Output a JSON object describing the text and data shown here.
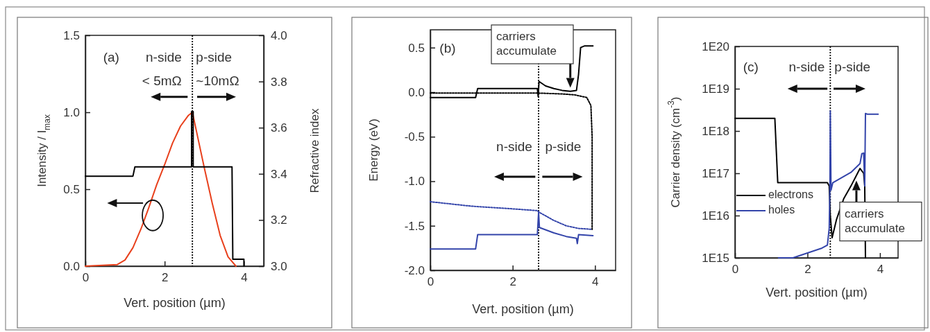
{
  "chart_data": [
    {
      "type": "line",
      "xlabel": "Vert. position (µm)",
      "ylabel": "Intensity / I$_{max}$",
      "y2label": "Refractive index",
      "xlim": [
        0,
        4.5
      ],
      "xticks": [
        0,
        2,
        4
      ],
      "ylim": [
        0,
        1.5
      ],
      "yticks": [
        {
          "value": 0,
          "label": "0.0"
        },
        {
          "value": 0.5,
          "label": "0.5"
        },
        {
          "value": 1,
          "label": "1.0"
        },
        {
          "value": 1.5,
          "label": "1.5"
        }
      ],
      "y2lim": [
        3.0,
        4.0
      ],
      "y2ticks": [
        {
          "value": 3,
          "label": "3.0"
        },
        {
          "value": 3.2,
          "label": "3.2"
        },
        {
          "value": 3.4,
          "label": "3.4"
        },
        {
          "value": 3.6,
          "label": "3.6"
        },
        {
          "value": 3.8,
          "label": "3.8"
        },
        {
          "value": 4,
          "label": "4.0"
        }
      ],
      "grid": false,
      "legend": false,
      "marker": "none",
      "series": [
        {
          "color": "#e8401c",
          "line_style": "solid",
          "x": [
            0,
            0.8,
            1.0,
            1.2,
            1.4,
            1.6,
            1.8,
            2.0,
            2.2,
            2.4,
            2.6,
            2.7,
            2.8,
            3.0,
            3.2,
            3.4,
            3.6,
            3.8
          ],
          "values": [
            0,
            0.01,
            0.04,
            0.12,
            0.24,
            0.38,
            0.53,
            0.66,
            0.8,
            0.91,
            0.98,
            1.0,
            0.88,
            0.64,
            0.41,
            0.2,
            0.06,
            0
          ]
        },
        {
          "color": "#000000",
          "line_style": "solid",
          "axis": "y2",
          "x": [
            0,
            1.2,
            1.25,
            2.68,
            2.68,
            2.72,
            2.72,
            3.7,
            3.72,
            4.0,
            4.0
          ],
          "values": [
            3.39,
            3.39,
            3.43,
            3.43,
            3.67,
            3.67,
            3.43,
            3.43,
            3.03,
            3.03,
            3.0
          ]
        }
      ],
      "ref_lines": [
        {
          "axis": "x",
          "value": 2.7,
          "line_style": "dotted",
          "color": "#000000"
        }
      ],
      "annotations": [
        "(a)",
        "n-side",
        "< 5mΩ",
        "p-side",
        "~10mΩ"
      ]
    },
    {
      "type": "line",
      "xlabel": "Vert. position (µm)",
      "ylabel": "Energy (eV)",
      "xlim": [
        0,
        4.5
      ],
      "xticks": [
        0,
        2,
        4
      ],
      "ylim": [
        -2.0,
        0.7
      ],
      "yticks": [
        {
          "value": -2,
          "label": "-2.0"
        },
        {
          "value": -1.5,
          "label": "-1.5"
        },
        {
          "value": -1,
          "label": "-1.0"
        },
        {
          "value": -0.5,
          "label": "-0.5"
        },
        {
          "value": 0,
          "label": "0.0"
        },
        {
          "value": 0.5,
          "label": "0.5"
        }
      ],
      "grid": false,
      "legend": false,
      "marker": "none",
      "series": [
        {
          "color": "#000000",
          "line_style": "solid",
          "x": [
            0,
            1.1,
            1.15,
            2.6,
            2.62,
            2.64,
            2.8,
            3.0,
            3.2,
            3.4,
            3.55,
            3.6,
            3.65,
            3.75,
            3.95
          ],
          "values": [
            -0.06,
            -0.06,
            0.04,
            0.04,
            -0.05,
            0.12,
            0.07,
            0.04,
            0.02,
            0.01,
            0.02,
            0.2,
            0.5,
            0.52,
            0.52
          ]
        },
        {
          "color": "#000000",
          "line_style": "dotted",
          "x": [
            0,
            2.6,
            3.2,
            3.5,
            3.8,
            3.9,
            3.93,
            3.93
          ],
          "values": [
            -0.01,
            -0.01,
            -0.02,
            -0.03,
            -0.06,
            -0.15,
            -0.5,
            -1.54
          ]
        },
        {
          "color": "#3344aa",
          "line_style": "dotted",
          "x": [
            0,
            1.0,
            2.0,
            2.6,
            2.65,
            3.0,
            3.3,
            3.6,
            3.93
          ],
          "values": [
            -1.23,
            -1.28,
            -1.31,
            -1.33,
            -1.35,
            -1.44,
            -1.5,
            -1.53,
            -1.54
          ]
        },
        {
          "color": "#3344aa",
          "line_style": "solid",
          "x": [
            0,
            1.1,
            1.15,
            2.6,
            2.63,
            2.65,
            3.0,
            3.3,
            3.55,
            3.57,
            3.6,
            3.95
          ],
          "values": [
            -1.76,
            -1.76,
            -1.6,
            -1.6,
            -1.35,
            -1.52,
            -1.58,
            -1.62,
            -1.64,
            -1.7,
            -1.6,
            -1.61
          ]
        }
      ],
      "ref_lines": [
        {
          "axis": "x",
          "value": 2.63,
          "line_style": "dotted",
          "color": "#000000"
        }
      ],
      "annotations": [
        "(b)",
        "n-side",
        "p-side",
        "carriers accumulate"
      ]
    },
    {
      "type": "line",
      "xlabel": "Vert. position (µm)",
      "ylabel": "Carrier density (cm$^{-3}$)",
      "log": "y",
      "xlim": [
        0,
        4.5
      ],
      "xticks": [
        0,
        2,
        4
      ],
      "ylim": [
        1000000000000000.0,
        1e+20
      ],
      "yticks": [
        {
          "value": 1000000000000000.0,
          "label": "1E15"
        },
        {
          "value": 1e+16,
          "label": "1E16"
        },
        {
          "value": 1e+17,
          "label": "1E17"
        },
        {
          "value": 1e+18,
          "label": "1E18"
        },
        {
          "value": 1e+19,
          "label": "1E19"
        },
        {
          "value": 1e+20,
          "label": "1E20"
        }
      ],
      "grid": false,
      "legend": "bottom left",
      "marker": "none",
      "series": [
        {
          "name": "electrons",
          "color": "#000000",
          "line_style": "solid",
          "x": [
            0,
            1.1,
            1.18,
            2.55,
            2.6,
            2.63,
            2.68,
            2.8,
            3.0,
            3.2,
            3.45,
            3.55,
            3.58,
            3.6
          ],
          "values": [
            2e+18,
            2e+18,
            6e+16,
            6e+16,
            5e+16,
            1e+16,
            3000000000000000.0,
            8000000000000000.0,
            2.5e+16,
            5e+16,
            1.3e+17,
            1e+17,
            5e+16,
            1000000000000000.0
          ]
        },
        {
          "name": "holes",
          "color": "#3344aa",
          "line_style": "solid",
          "x": [
            1.2,
            1.6,
            2.0,
            2.4,
            2.55,
            2.6,
            2.62,
            2.63,
            2.65,
            2.7,
            3.2,
            3.45,
            3.5,
            3.55,
            3.58,
            3.6,
            3.65,
            3.95
          ],
          "values": [
            1000000000000000.0,
            1000000000000000.0,
            1300000000000000.0,
            1700000000000000.0,
            2000000000000000.0,
            5000000000000000.0,
            5e+16,
            3e+18,
            4e+16,
            6e+16,
            1.05e+17,
            1.7e+17,
            2.9e+17,
            3e+17,
            5e+16,
            2.6e+18,
            2.5e+18,
            2.5e+18
          ]
        }
      ],
      "ref_lines": [
        {
          "axis": "x",
          "value": 2.63,
          "line_style": "dotted",
          "color": "#000000"
        }
      ],
      "annotations": [
        "(c)",
        "n-side",
        "p-side",
        {
          "text": "carriers accumulate",
          "x": 3.35,
          "y": 7.8e+16
        }
      ]
    }
  ]
}
